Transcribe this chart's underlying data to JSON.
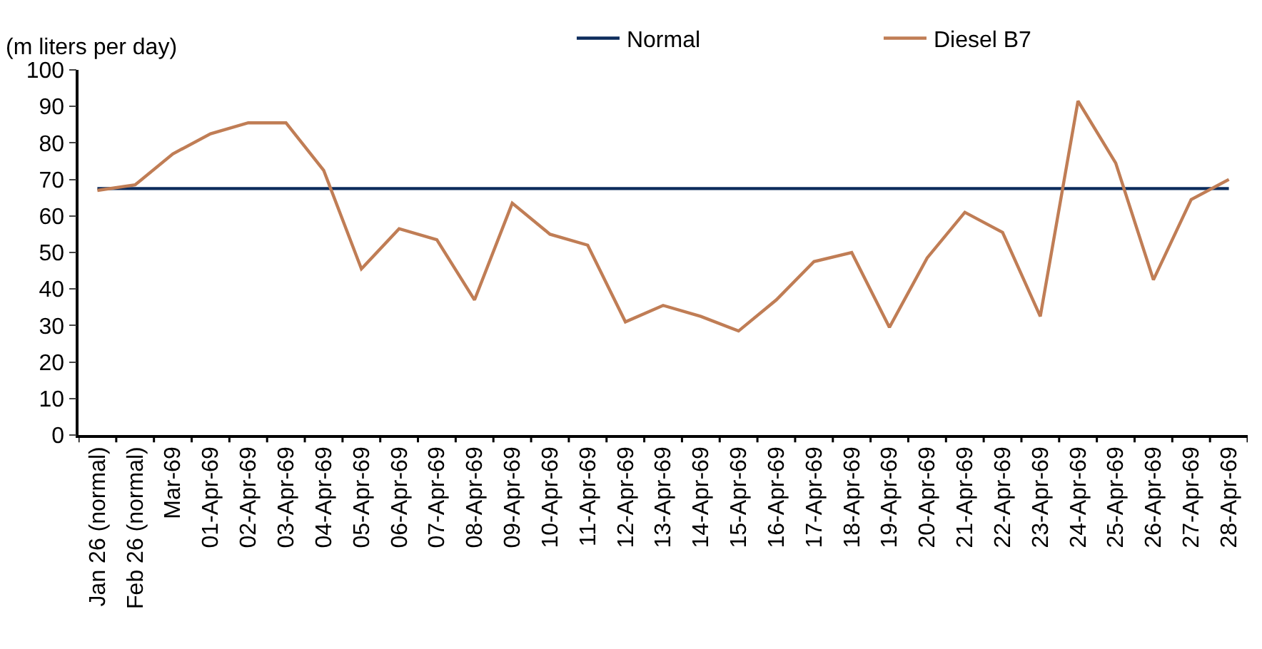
{
  "chart_data": {
    "type": "line",
    "ylabel": "(m liters per day)",
    "categories": [
      "Jan 26 (normal)",
      "Feb 26 (normal)",
      "Mar-69",
      "01-Apr-69",
      "02-Apr-69",
      "03-Apr-69",
      "04-Apr-69",
      "05-Apr-69",
      "06-Apr-69",
      "07-Apr-69",
      "08-Apr-69",
      "09-Apr-69",
      "10-Apr-69",
      "11-Apr-69",
      "12-Apr-69",
      "13-Apr-69",
      "14-Apr-69",
      "15-Apr-69",
      "16-Apr-69",
      "17-Apr-69",
      "18-Apr-69",
      "19-Apr-69",
      "20-Apr-69",
      "21-Apr-69",
      "22-Apr-69",
      "23-Apr-69",
      "24-Apr-69",
      "25-Apr-69",
      "26-Apr-69",
      "27-Apr-69",
      "28-Apr-69"
    ],
    "series": [
      {
        "name": "Normal",
        "color": "#0c2c5c",
        "values": [
          67.5,
          67.5,
          67.5,
          67.5,
          67.5,
          67.5,
          67.5,
          67.5,
          67.5,
          67.5,
          67.5,
          67.5,
          67.5,
          67.5,
          67.5,
          67.5,
          67.5,
          67.5,
          67.5,
          67.5,
          67.5,
          67.5,
          67.5,
          67.5,
          67.5,
          67.5,
          67.5,
          67.5,
          67.5,
          67.5,
          67.5
        ]
      },
      {
        "name": "Diesel B7",
        "color": "#c07d55",
        "values": [
          67,
          68.5,
          77,
          82.5,
          85.5,
          85.5,
          72.5,
          45.5,
          56.5,
          53.5,
          37,
          63.5,
          55,
          52,
          31,
          35.5,
          32.5,
          28.5,
          37,
          47.5,
          50,
          29.5,
          48.5,
          61,
          55.5,
          32.5,
          91.5,
          74.5,
          42.5,
          64.5,
          70
        ]
      }
    ],
    "ylim": [
      0,
      100
    ],
    "yticks": [
      0,
      10,
      20,
      30,
      40,
      50,
      60,
      70,
      80,
      90,
      100
    ],
    "legend": "top",
    "marker": "none",
    "line_style": "solid"
  }
}
